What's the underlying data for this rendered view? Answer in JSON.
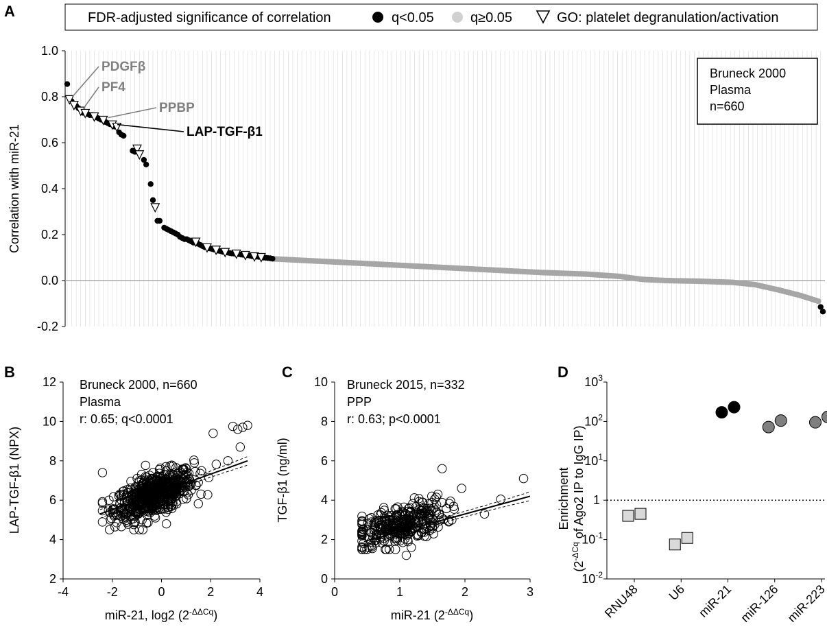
{
  "panel_labels": {
    "a": "A",
    "b": "B",
    "c": "C",
    "d": "D"
  },
  "legend": {
    "title": "FDR-adjusted significance of correlation",
    "sig": "q<0.05",
    "nonsig": "q≥0.05",
    "go": "GO: platelet degranulation/activation"
  },
  "colors": {
    "sig": "#000000",
    "nonsig": "#a6a6a6",
    "grid": "#d9d9d9",
    "annot_gray": "#7f7f7f",
    "box_light": "#d9d9d9",
    "dot_mid": "#7f7f7f"
  },
  "chart_data": [
    {
      "panel": "A",
      "type": "scatter",
      "ylabel": "Correlation with miR-21",
      "ylim": [
        -0.2,
        1.0
      ],
      "yticks": [
        "-0.2",
        "0.0",
        "0.2",
        "0.4",
        "0.6",
        "0.8",
        "1.0"
      ],
      "n_features": 336,
      "grid": "vertical",
      "infobox": [
        "Bruneck 2000",
        "Plasma",
        "n=660"
      ],
      "annotations": [
        {
          "label": "PDGFβ",
          "rank": 1,
          "value": 0.79,
          "color": "gray"
        },
        {
          "label": "PF4",
          "rank": 6,
          "value": 0.74,
          "color": "gray"
        },
        {
          "label": "PPBP",
          "rank": 17,
          "value": 0.7,
          "color": "gray"
        },
        {
          "label": "LAP-TGF-β1",
          "rank": 21,
          "value": 0.67,
          "color": "black"
        }
      ],
      "sig_points": [
        [
          0,
          0.855
        ],
        [
          2,
          0.78
        ],
        [
          4,
          0.76
        ],
        [
          5,
          0.75
        ],
        [
          7,
          0.73
        ],
        [
          9,
          0.725
        ],
        [
          10,
          0.72
        ],
        [
          11,
          0.72
        ],
        [
          13,
          0.71
        ],
        [
          14,
          0.705
        ],
        [
          15,
          0.7
        ],
        [
          17,
          0.69
        ],
        [
          18,
          0.685
        ],
        [
          19,
          0.68
        ],
        [
          21,
          0.67
        ],
        [
          23,
          0.645
        ],
        [
          24,
          0.635
        ],
        [
          25,
          0.63
        ],
        [
          29,
          0.565
        ],
        [
          30,
          0.56
        ],
        [
          34,
          0.525
        ],
        [
          35,
          0.505
        ],
        [
          37,
          0.42
        ],
        [
          38,
          0.35
        ],
        [
          40,
          0.26
        ],
        [
          41,
          0.26
        ],
        [
          43,
          0.23
        ],
        [
          44,
          0.225
        ],
        [
          45,
          0.22
        ],
        [
          46,
          0.215
        ],
        [
          47,
          0.21
        ],
        [
          48,
          0.205
        ],
        [
          49,
          0.2
        ],
        [
          50,
          0.19
        ],
        [
          51,
          0.185
        ],
        [
          52,
          0.18
        ],
        [
          53,
          0.18
        ],
        [
          54,
          0.175
        ],
        [
          55,
          0.17
        ],
        [
          56,
          0.165
        ],
        [
          58,
          0.16
        ],
        [
          59,
          0.155
        ],
        [
          60,
          0.15
        ],
        [
          61,
          0.145
        ],
        [
          63,
          0.14
        ],
        [
          64,
          0.138
        ],
        [
          65,
          0.135
        ],
        [
          67,
          0.13
        ],
        [
          68,
          0.128
        ],
        [
          69,
          0.125
        ],
        [
          71,
          0.122
        ],
        [
          72,
          0.12
        ],
        [
          73,
          0.118
        ],
        [
          74,
          0.117
        ],
        [
          76,
          0.115
        ],
        [
          77,
          0.113
        ],
        [
          78,
          0.112
        ],
        [
          80,
          0.11
        ],
        [
          81,
          0.108
        ],
        [
          82,
          0.106
        ],
        [
          84,
          0.104
        ],
        [
          85,
          0.103
        ],
        [
          87,
          0.1
        ],
        [
          88,
          0.099
        ],
        [
          89,
          0.098
        ],
        [
          90,
          0.097
        ],
        [
          91,
          0.095
        ],
        [
          334,
          -0.115
        ],
        [
          335,
          -0.135
        ]
      ],
      "go_points": [
        [
          1,
          0.79
        ],
        [
          3,
          0.765
        ],
        [
          6,
          0.74
        ],
        [
          8,
          0.73
        ],
        [
          12,
          0.715
        ],
        [
          16,
          0.7
        ],
        [
          20,
          0.68
        ],
        [
          22,
          0.67
        ],
        [
          31,
          0.575
        ],
        [
          32,
          0.55
        ],
        [
          39,
          0.32
        ],
        [
          57,
          0.17
        ],
        [
          62,
          0.145
        ],
        [
          66,
          0.135
        ],
        [
          70,
          0.125
        ],
        [
          75,
          0.118
        ],
        [
          79,
          0.112
        ],
        [
          83,
          0.106
        ],
        [
          86,
          0.103
        ]
      ],
      "nonsig_curve": [
        [
          92,
          0.094
        ],
        [
          110,
          0.085
        ],
        [
          130,
          0.075
        ],
        [
          150,
          0.065
        ],
        [
          170,
          0.055
        ],
        [
          190,
          0.045
        ],
        [
          210,
          0.035
        ],
        [
          230,
          0.028
        ],
        [
          245,
          0.018
        ],
        [
          255,
          0.005
        ],
        [
          265,
          0.0
        ],
        [
          280,
          -0.003
        ],
        [
          295,
          -0.008
        ],
        [
          305,
          -0.018
        ],
        [
          315,
          -0.04
        ],
        [
          325,
          -0.065
        ],
        [
          333,
          -0.09
        ]
      ]
    },
    {
      "panel": "B",
      "type": "scatter",
      "xlabel": "miR-21, log2 (2",
      "xlabel_sup": "-ΔΔCq",
      "xlabel_end": ")",
      "ylabel": "LAP-TGF-β1 (NPX)",
      "xlim": [
        -4,
        4
      ],
      "ylim": [
        2,
        12
      ],
      "xticks": [
        "-4",
        "-2",
        "0",
        "2",
        "4"
      ],
      "yticks": [
        "2",
        "4",
        "6",
        "8",
        "10",
        "12"
      ],
      "annotation": [
        "Bruneck 2000, n=660",
        "Plasma",
        "r: 0.65; q<0.0001"
      ],
      "fit": {
        "x": [
          -2.5,
          3.5
        ],
        "y": [
          5.3,
          8.0
        ]
      },
      "n_points": 660,
      "outliers": [
        [
          -2.4,
          7.4
        ],
        [
          3.5,
          9.8
        ],
        [
          3.3,
          9.7
        ],
        [
          3.1,
          9.6
        ],
        [
          2.9,
          9.75
        ],
        [
          3.2,
          8.7
        ],
        [
          2.7,
          8.0
        ],
        [
          2.1,
          9.4
        ],
        [
          -0.9,
          4.5
        ],
        [
          0.2,
          4.8
        ]
      ]
    },
    {
      "panel": "C",
      "type": "scatter",
      "xlabel": "miR-21 (2",
      "xlabel_sup": "-ΔΔCq",
      "xlabel_end": ")",
      "ylabel": "TGF-β1 (ng/ml)",
      "xlim": [
        0,
        3
      ],
      "ylim": [
        0,
        10
      ],
      "xticks": [
        "0",
        "1",
        "2",
        "3"
      ],
      "yticks": [
        "0",
        "2",
        "4",
        "6",
        "8",
        "10"
      ],
      "annotation": [
        "Bruneck 2015, n=332",
        "PPP",
        "r: 0.63; p<0.0001"
      ],
      "fit": {
        "x": [
          0.45,
          3.0
        ],
        "y": [
          1.9,
          4.2
        ]
      },
      "n_points": 332,
      "outliers": [
        [
          1.65,
          5.6
        ],
        [
          2.9,
          5.1
        ],
        [
          2.55,
          4.05
        ],
        [
          1.95,
          4.6
        ],
        [
          2.3,
          3.3
        ],
        [
          1.1,
          1.2
        ]
      ]
    },
    {
      "panel": "D",
      "type": "scatter",
      "ylabel": "Enrichment",
      "ylabel2_pre": "(2",
      "ylabel2_sup": "-ΔCq",
      "ylabel2_post": " of Ago2 IP to IgG IP)",
      "yscale": "log",
      "ylim": [
        0.01,
        1000
      ],
      "yticks": [
        {
          "base": "10",
          "exp": "-2"
        },
        {
          "base": "10",
          "exp": "-1"
        },
        {
          "base": "1",
          "exp": ""
        },
        {
          "base": "10",
          "exp": "1"
        },
        {
          "base": "10",
          "exp": "2"
        },
        {
          "base": "10",
          "exp": "3"
        }
      ],
      "categories": [
        "RNU48",
        "U6",
        "miR-21",
        "miR-126",
        "miR-223"
      ],
      "reference_line": 1,
      "points": [
        {
          "category": "RNU48",
          "values": [
            0.4,
            0.45
          ],
          "marker": "square",
          "fill": "light"
        },
        {
          "category": "U6",
          "values": [
            0.075,
            0.11
          ],
          "marker": "square",
          "fill": "light"
        },
        {
          "category": "miR-21",
          "values": [
            170,
            230
          ],
          "marker": "circle",
          "fill": "black"
        },
        {
          "category": "miR-126",
          "values": [
            72,
            105
          ],
          "marker": "circle",
          "fill": "gray"
        },
        {
          "category": "miR-223",
          "values": [
            95,
            130
          ],
          "marker": "circle",
          "fill": "gray"
        }
      ]
    }
  ]
}
